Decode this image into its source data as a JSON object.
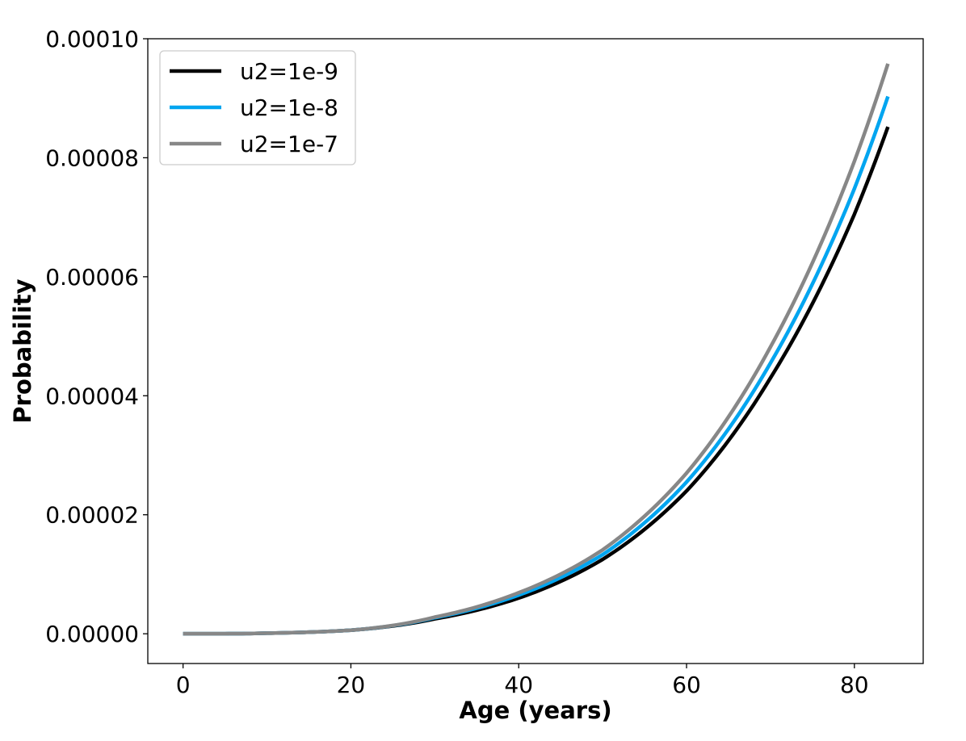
{
  "chart_data": {
    "type": "line",
    "xlabel": "Age (years)",
    "ylabel": "Probability",
    "xlim": [
      -4.2,
      88.2
    ],
    "ylim": [
      -5e-06,
      0.0001
    ],
    "xticks": [
      0,
      20,
      40,
      60,
      80
    ],
    "xtick_labels": [
      "0",
      "20",
      "40",
      "60",
      "80"
    ],
    "yticks": [
      0,
      2e-05,
      4e-05,
      6e-05,
      8e-05,
      0.0001
    ],
    "ytick_labels": [
      "0.00000",
      "0.00002",
      "0.00004",
      "0.00006",
      "0.00008",
      "0.00010"
    ],
    "grid": false,
    "legend_position": "top-left",
    "x": [
      0,
      10,
      20,
      30,
      40,
      50,
      60,
      70,
      80,
      84
    ],
    "series": [
      {
        "name": "u2=1e-9",
        "color": "#000000",
        "values": [
          0,
          1e-07,
          6e-07,
          2.5e-06,
          6e-06,
          1.25e-05,
          2.4e-05,
          4.3e-05,
          7.05e-05,
          8.52e-05
        ]
      },
      {
        "name": "u2=1e-8",
        "color": "#00a5f0",
        "values": [
          0,
          1e-07,
          6e-07,
          2.7e-06,
          6.5e-06,
          1.33e-05,
          2.55e-05,
          4.55e-05,
          7.48e-05,
          9.03e-05
        ]
      },
      {
        "name": "u2=1e-7",
        "color": "#878787",
        "values": [
          0,
          1e-07,
          6e-07,
          2.8e-06,
          6.9e-06,
          1.41e-05,
          2.7e-05,
          4.82e-05,
          7.94e-05,
          9.58e-05
        ]
      }
    ]
  }
}
